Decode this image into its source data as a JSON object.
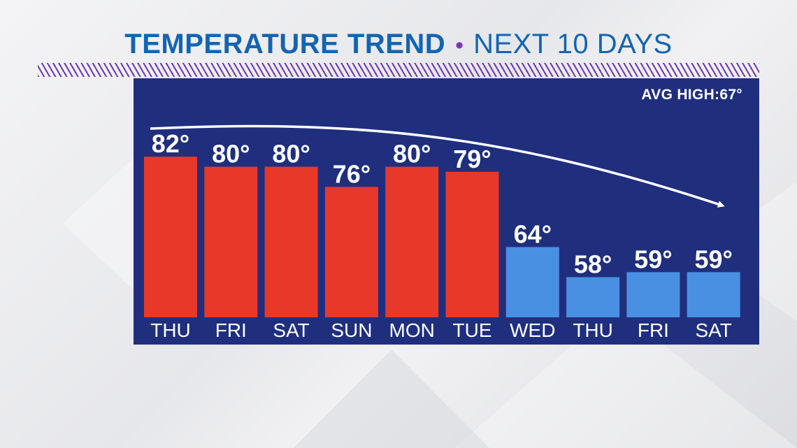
{
  "header": {
    "title_bold": "TEMPERATURE TREND",
    "separator": "•",
    "title_light": "NEXT 10 DAYS"
  },
  "panel": {
    "avg_high_label": "AVG HIGH:67°"
  },
  "colors": {
    "title": "#1464b0",
    "accent": "#7d35b8",
    "panel": "#1f2f7e",
    "warm_bar": "#e8382a",
    "cool_bar": "#4a90e2",
    "text": "#ffffff"
  },
  "chart_data": {
    "type": "bar",
    "title": "TEMPERATURE TREND • NEXT 10 DAYS",
    "xlabel": "",
    "ylabel": "",
    "categories": [
      "THU",
      "FRI",
      "SAT",
      "SUN",
      "MON",
      "TUE",
      "WED",
      "THU",
      "FRI",
      "SAT"
    ],
    "values": [
      82,
      80,
      80,
      76,
      80,
      79,
      64,
      58,
      59,
      59
    ],
    "value_labels": [
      "82°",
      "80°",
      "80°",
      "76°",
      "80°",
      "79°",
      "64°",
      "58°",
      "59°",
      "59°"
    ],
    "bar_groups": [
      "warm",
      "warm",
      "warm",
      "warm",
      "warm",
      "warm",
      "cool",
      "cool",
      "cool",
      "cool"
    ],
    "reference": {
      "label": "AVG HIGH:67°",
      "value": 67
    },
    "trend_arrow": "down",
    "grid": false,
    "legend": "none"
  }
}
